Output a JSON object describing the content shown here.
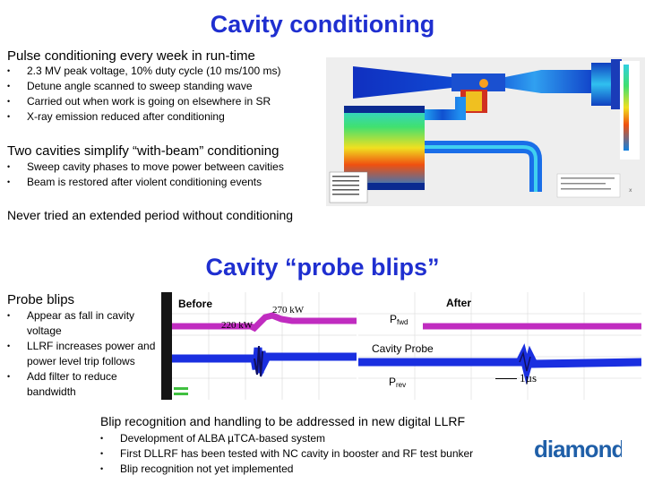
{
  "section1": {
    "title": "Cavity conditioning",
    "pulse_heading": "Pulse conditioning every week in run-time",
    "pulse_bullets": [
      "2.3 MV peak voltage, 10% duty cycle (10 ms/100 ms)",
      "Detune angle scanned to sweep standing wave",
      "Carried out when work is going on elsewhere in SR",
      "X-ray emission reduced after conditioning"
    ],
    "two_cav_heading": "Two cavities simplify “with-beam” conditioning",
    "two_cav_bullets": [
      "Sweep cavity phases to move power between cavities",
      "Beam is restored after violent conditioning events"
    ],
    "never_text": "Never tried an extended period without conditioning"
  },
  "section2": {
    "title": "Cavity “probe blips”",
    "probe_heading": "Probe blips",
    "probe_bullets": [
      "Appear as fall in cavity voltage",
      "LLRF increases power and power level trip follows",
      "Add filter to reduce bandwidth"
    ],
    "before_label": "Before",
    "after_label": "After",
    "val_270": "270 kW",
    "val_220": "220 kW",
    "pfwd_main": "P",
    "pfwd_sub": "fwd",
    "cavity_probe": "Cavity Probe",
    "prev_main": "P",
    "prev_sub": "rev",
    "time_1us": "1µs",
    "blip_heading": "Blip recognition and handling to be addressed in new digital LLRF",
    "blip_bullets": [
      "Development of ALBA µTCA-based system",
      "First DLLRF has been tested with NC cavity in booster and RF test bunker",
      "Blip recognition not yet implemented"
    ]
  },
  "logo": {
    "text": "diamond",
    "color": "#1f5fa8"
  },
  "colors": {
    "title": "#1f2fd0",
    "magenta": "#c02cc0",
    "blue": "#1a2fe0",
    "scope_bg": "#1a1a1a"
  }
}
